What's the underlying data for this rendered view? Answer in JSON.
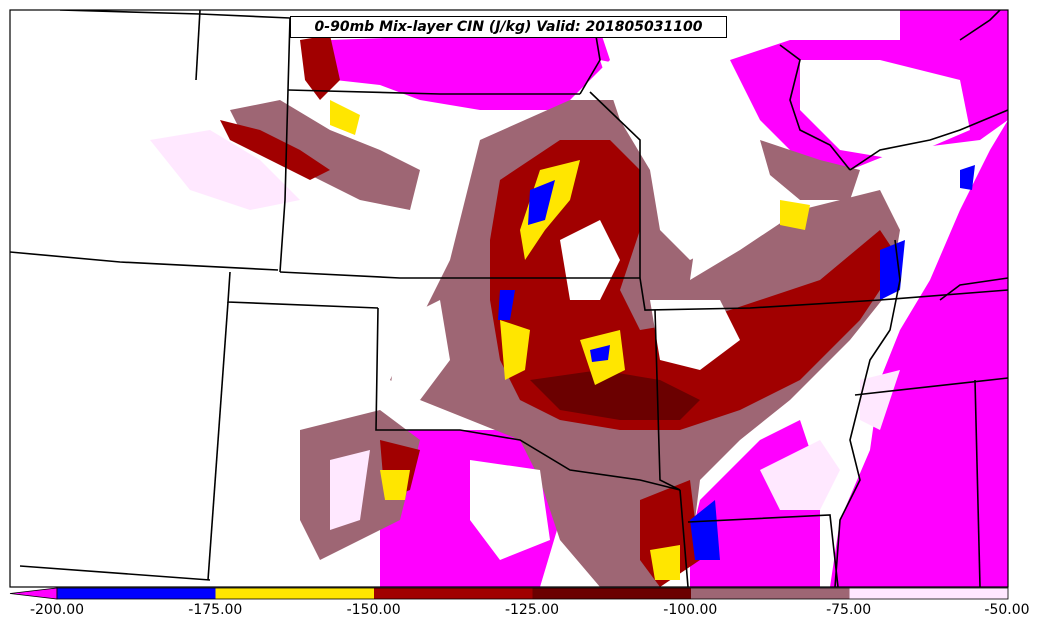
{
  "map": {
    "title": "0-90mb Mix-layer CIN (J/kg) Valid: 201805031100",
    "field": "CIN",
    "units": "J/kg",
    "valid_time": "201805031100"
  },
  "colorbar": {
    "extend": "min",
    "levels": [
      "-200.00",
      "-175.00",
      "-150.00",
      "-125.00",
      "-100.00",
      "-75.00",
      "-50.00"
    ],
    "bins": [
      {
        "range": [
          -200,
          -175
        ],
        "color": "#0000ff"
      },
      {
        "range": [
          -175,
          -150
        ],
        "color": "#ffe600"
      },
      {
        "range": [
          -150,
          -125
        ],
        "color": "#a10000"
      },
      {
        "range": [
          -125,
          -100
        ],
        "color": "#6b0000"
      },
      {
        "range": [
          -100,
          -75
        ],
        "color": "#9e6674"
      },
      {
        "range": [
          -75,
          -50
        ],
        "color": "#ffe8ff"
      }
    ],
    "under_color": "#ff00ff"
  },
  "colors": {
    "magenta": "#ff00ff",
    "blue": "#0000ff",
    "yellow": "#ffe600",
    "red": "#a10000",
    "darkred": "#6b0000",
    "mauve": "#9e6674",
    "pink": "#ffe8ff",
    "background": "#ffffff",
    "boundary": "#000000"
  }
}
